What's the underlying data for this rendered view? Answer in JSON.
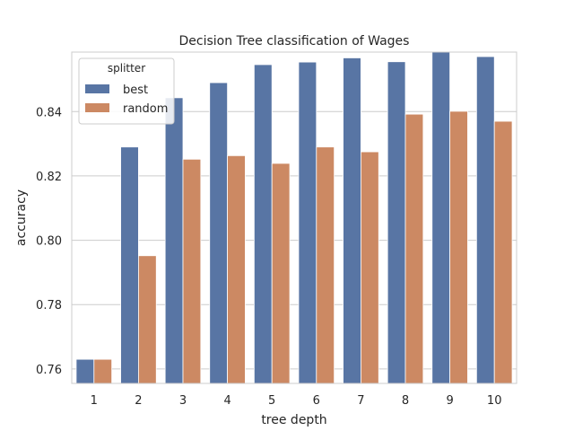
{
  "chart_data": {
    "type": "bar",
    "title": "Decision Tree classification of Wages",
    "xlabel": "tree depth",
    "ylabel": "accuracy",
    "categories": [
      "1",
      "2",
      "3",
      "4",
      "5",
      "6",
      "7",
      "8",
      "9",
      "10"
    ],
    "ylim": [
      0.7555,
      0.8585
    ],
    "yticks": [
      "0.76",
      "0.78",
      "0.80",
      "0.82",
      "0.84"
    ],
    "grid": true,
    "legend": {
      "title": "splitter",
      "placement": "top-left"
    },
    "series": [
      {
        "name": "best",
        "color": "#5875a4",
        "values": [
          0.763,
          0.829,
          0.8443,
          0.849,
          0.8546,
          0.8554,
          0.8567,
          0.8555,
          0.8587,
          0.8571
        ]
      },
      {
        "name": "random",
        "color": "#cc8963",
        "values": [
          0.763,
          0.7952,
          0.8252,
          0.8263,
          0.8239,
          0.829,
          0.8275,
          0.8392,
          0.8401,
          0.837
        ]
      }
    ]
  }
}
